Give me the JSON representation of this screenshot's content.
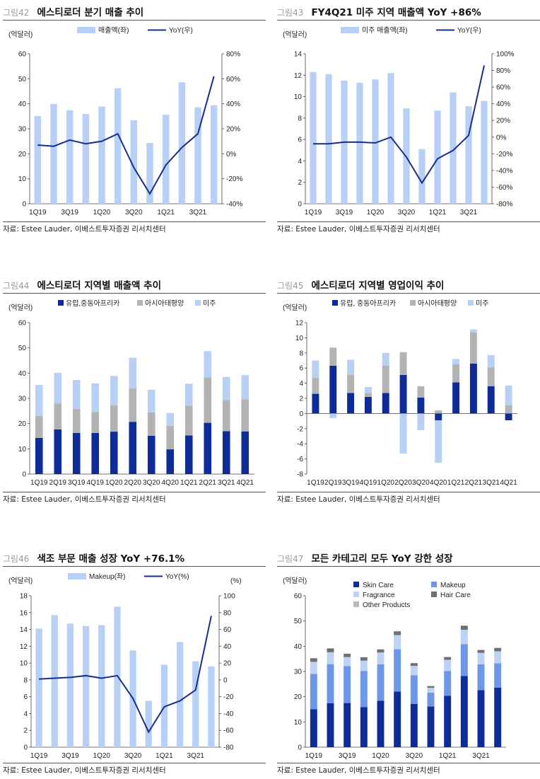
{
  "colors": {
    "bar_light": "#b8cff7",
    "line_navy": "#172f8c",
    "seg_navy": "#0e2c99",
    "seg_gray": "#b3b3b3",
    "seg_lightblue": "#b8d0f5",
    "seg_mid": "#6d97e9",
    "seg_light2": "#bcd2f6",
    "seg_gray2": "#b9b9b9",
    "seg_dark": "#707070"
  },
  "panels": [
    {
      "fig": "그림42",
      "title": "에스티로더 분기 매출 추이",
      "source": "자료: Estee Lauder, 이베스트투자증권 리서치센터",
      "unit": "(억달러)",
      "unit_right": "",
      "legend": [
        "매출액(좌)",
        "YoY(우)"
      ],
      "xticks": [
        "1Q19",
        "3Q19",
        "1Q20",
        "3Q20",
        "1Q21",
        "3Q21"
      ],
      "yticks": [
        "0",
        "10",
        "20",
        "30",
        "40",
        "50",
        "60"
      ],
      "y2ticks": [
        "-40%",
        "-20%",
        "0%",
        "20%",
        "40%",
        "60%",
        "80%"
      ]
    },
    {
      "fig": "그림43",
      "title": "FY4Q21 미주 지역 매출액 YoY +86%",
      "source": "자료: Estee Lauder, 이베스트투자증권 리서치센터",
      "unit": "(억달러)",
      "unit_right": "",
      "legend": [
        "미주 매출액(좌)",
        "YoY(우)"
      ],
      "xticks": [
        "1Q19",
        "3Q19",
        "1Q20",
        "3Q20",
        "1Q21",
        "3Q21"
      ],
      "yticks": [
        "0",
        "2",
        "4",
        "6",
        "8",
        "10",
        "12",
        "14"
      ],
      "y2ticks": [
        "-80%",
        "-60%",
        "-40%",
        "-20%",
        "0%",
        "20%",
        "40%",
        "60%",
        "80%",
        "100%"
      ]
    },
    {
      "fig": "그림44",
      "title": "에스티로더 지역별 매출액 추이",
      "source": "자료: Estee Lauder, 이베스트투자증권 리서치센터",
      "unit": "(억달러)",
      "unit_right": "",
      "legend": [
        "유럽,중동아프리카",
        "아시아태평양",
        "미주"
      ],
      "xticks": [
        "1Q19",
        "2Q19",
        "3Q19",
        "4Q19",
        "1Q20",
        "2Q20",
        "3Q20",
        "4Q20",
        "1Q21",
        "2Q21",
        "3Q21",
        "4Q21"
      ],
      "yticks": [
        "0",
        "10",
        "20",
        "30",
        "40",
        "50",
        "60"
      ],
      "y2ticks": []
    },
    {
      "fig": "그림45",
      "title": "에스티로더 지역별 영업이익 추이",
      "source": "자료: Estee Lauder, 이베스트투자증권 리서치센터",
      "unit": "(억달러)",
      "unit_right": "",
      "legend": [
        "유럽, 중동아프리카",
        "아시아태평양",
        "미주"
      ],
      "xticks": [
        "1Q19",
        "2Q19",
        "3Q19",
        "4Q19",
        "1Q20",
        "2Q20",
        "3Q20",
        "4Q20",
        "1Q21",
        "2Q21",
        "3Q21",
        "4Q21"
      ],
      "yticks": [
        "-8",
        "-6",
        "-4",
        "-2",
        "0",
        "2",
        "4",
        "6",
        "8",
        "10",
        "12"
      ],
      "y2ticks": []
    },
    {
      "fig": "그림46",
      "title": "색조 부문 매출 성장 YoY +76.1%",
      "source": "자료: Estee Lauder, 이베스트투자증권 리서치센터",
      "unit": "(억달러)",
      "unit_right": "(%)",
      "legend": [
        "Makeup(좌)",
        "YoY(%)"
      ],
      "xticks": [
        "1Q19",
        "3Q19",
        "1Q20",
        "3Q20",
        "1Q21",
        "3Q21"
      ],
      "yticks": [
        "0",
        "2",
        "4",
        "6",
        "8",
        "10",
        "12",
        "14",
        "16",
        "18"
      ],
      "y2ticks": [
        "-80",
        "-60",
        "-40",
        "-20",
        "0",
        "20",
        "40",
        "60",
        "80",
        "100"
      ]
    },
    {
      "fig": "그림47",
      "title": "모든 카테고리 모두 YoY 강한 성장",
      "source": "자료: Estee Lauder, 이베스트투자증권 리서치센터",
      "unit": "(억달러)",
      "unit_right": "",
      "legend": [
        "Skin Care",
        "Makeup",
        "Fragrance",
        "Hair Care",
        "Other Products"
      ],
      "xticks": [
        "1Q19",
        "3Q19",
        "1Q20",
        "3Q20",
        "1Q21",
        "3Q21"
      ],
      "yticks": [
        "0",
        "10",
        "20",
        "30",
        "40",
        "50",
        "60"
      ],
      "y2ticks": []
    }
  ],
  "chart_data": [
    {
      "type": "bar",
      "categories": [
        "1Q19",
        "2Q19",
        "3Q19",
        "4Q19",
        "1Q20",
        "2Q20",
        "3Q20",
        "4Q20",
        "1Q21",
        "2Q21",
        "3Q21",
        "4Q21"
      ],
      "series": [
        {
          "name": "매출액(좌)",
          "type": "bar",
          "axis": "left",
          "values": [
            35.1,
            39.9,
            37.4,
            35.9,
            38.9,
            46.2,
            33.4,
            24.3,
            35.6,
            48.6,
            38.6,
            39.4
          ]
        },
        {
          "name": "YoY(우)",
          "type": "line",
          "axis": "right",
          "values": [
            7,
            6,
            11,
            8,
            10,
            16,
            -11,
            -32,
            -9,
            5,
            16,
            62
          ]
        }
      ],
      "ylim": [
        0,
        60
      ],
      "y2lim": [
        -40,
        80
      ]
    },
    {
      "type": "bar",
      "categories": [
        "1Q19",
        "2Q19",
        "3Q19",
        "4Q19",
        "1Q20",
        "2Q20",
        "3Q20",
        "4Q20",
        "1Q21",
        "2Q21",
        "3Q21",
        "4Q21"
      ],
      "series": [
        {
          "name": "미주 매출액(좌)",
          "type": "bar",
          "axis": "left",
          "values": [
            12.3,
            12.1,
            11.5,
            11.3,
            11.6,
            12.2,
            8.9,
            5.1,
            8.7,
            10.4,
            9.1,
            9.6
          ]
        },
        {
          "name": "YoY(우)",
          "type": "line",
          "axis": "right",
          "values": [
            -8,
            -8,
            -6,
            -6,
            -7,
            0,
            -24,
            -55,
            -26,
            -16,
            2,
            86
          ]
        }
      ],
      "ylim": [
        0,
        14
      ],
      "y2lim": [
        -80,
        100
      ]
    },
    {
      "type": "bar",
      "stacked": true,
      "categories": [
        "1Q19",
        "2Q19",
        "3Q19",
        "4Q19",
        "1Q20",
        "2Q20",
        "3Q20",
        "4Q20",
        "1Q21",
        "2Q21",
        "3Q21",
        "4Q21"
      ],
      "series": [
        {
          "name": "유럽,중동아프리카",
          "values": [
            14.3,
            17.7,
            16.3,
            16.3,
            16.8,
            20.7,
            15.2,
            9.8,
            15.3,
            20.3,
            17.0,
            16.9
          ]
        },
        {
          "name": "아시아태평양",
          "values": [
            8.7,
            10.3,
            9.5,
            8.3,
            10.5,
            13.2,
            9.3,
            9.3,
            11.8,
            18.0,
            12.4,
            12.7
          ]
        },
        {
          "name": "미주",
          "values": [
            12.3,
            12.1,
            11.5,
            11.3,
            11.6,
            12.2,
            8.9,
            5.1,
            8.7,
            10.4,
            9.1,
            9.6
          ]
        }
      ],
      "ylim": [
        0,
        60
      ]
    },
    {
      "type": "bar",
      "stacked": true,
      "categories": [
        "1Q19",
        "2Q19",
        "3Q19",
        "4Q19",
        "1Q20",
        "2Q20",
        "3Q20",
        "4Q20",
        "1Q21",
        "2Q21",
        "3Q21",
        "4Q21"
      ],
      "series": [
        {
          "name": "유럽, 중동아프리카",
          "values": [
            2.6,
            6.3,
            2.7,
            2.2,
            2.7,
            5.1,
            2.1,
            -0.9,
            4.1,
            6.6,
            3.6,
            -0.9
          ]
        },
        {
          "name": "아시아태평양",
          "values": [
            2.1,
            2.4,
            2.4,
            0.5,
            3.6,
            3.0,
            1.5,
            0.4,
            2.4,
            4.1,
            2.5,
            1.1
          ]
        },
        {
          "name": "미주",
          "values": [
            2.3,
            -0.6,
            2.0,
            0.8,
            1.7,
            -5.3,
            -2.2,
            -5.6,
            0.7,
            0.4,
            1.6,
            2.6
          ]
        }
      ],
      "ylim": [
        -8,
        12
      ]
    },
    {
      "type": "bar",
      "categories": [
        "1Q19",
        "2Q19",
        "3Q19",
        "4Q19",
        "1Q20",
        "2Q20",
        "3Q20",
        "4Q20",
        "1Q21",
        "2Q21",
        "3Q21",
        "4Q21"
      ],
      "series": [
        {
          "name": "Makeup(좌)",
          "type": "bar",
          "axis": "left",
          "values": [
            14.1,
            15.7,
            14.7,
            14.4,
            14.5,
            16.7,
            11.5,
            5.5,
            9.8,
            12.5,
            10.2,
            9.6
          ]
        },
        {
          "name": "YoY(%)",
          "type": "line",
          "axis": "right",
          "values": [
            1,
            2,
            3,
            5,
            2,
            5,
            -22,
            -62,
            -32,
            -25,
            -12,
            76.1
          ]
        }
      ],
      "ylim": [
        0,
        18
      ],
      "y2lim": [
        -80,
        100
      ]
    },
    {
      "type": "bar",
      "stacked": true,
      "categories": [
        "1Q19",
        "2Q19",
        "3Q19",
        "4Q19",
        "1Q20",
        "2Q20",
        "3Q20",
        "4Q20",
        "1Q21",
        "2Q21",
        "3Q21",
        "4Q21"
      ],
      "series": [
        {
          "name": "Skin Care",
          "values": [
            15.0,
            17.4,
            17.5,
            15.9,
            18.4,
            22.0,
            17.1,
            16.1,
            20.4,
            28.2,
            22.6,
            23.6
          ]
        },
        {
          "name": "Makeup",
          "values": [
            14.0,
            15.5,
            14.6,
            14.3,
            14.4,
            16.8,
            11.4,
            5.5,
            9.8,
            12.6,
            10.2,
            9.6
          ]
        },
        {
          "name": "Fragrance",
          "values": [
            4.8,
            4.7,
            3.6,
            4.1,
            4.7,
            5.6,
            3.7,
            1.9,
            4.4,
            5.7,
            4.6,
            4.8
          ]
        },
        {
          "name": "Hair Care",
          "values": [
            1.4,
            1.5,
            1.3,
            1.3,
            1.2,
            1.5,
            1.1,
            0.7,
            1.1,
            1.6,
            1.1,
            1.3
          ]
        },
        {
          "name": "Other Products",
          "values": [
            0.1,
            0.1,
            0.1,
            0.1,
            0.1,
            0.1,
            0.1,
            0.1,
            0.1,
            0.1,
            0.1,
            0.1
          ]
        }
      ],
      "ylim": [
        0,
        60
      ]
    }
  ]
}
